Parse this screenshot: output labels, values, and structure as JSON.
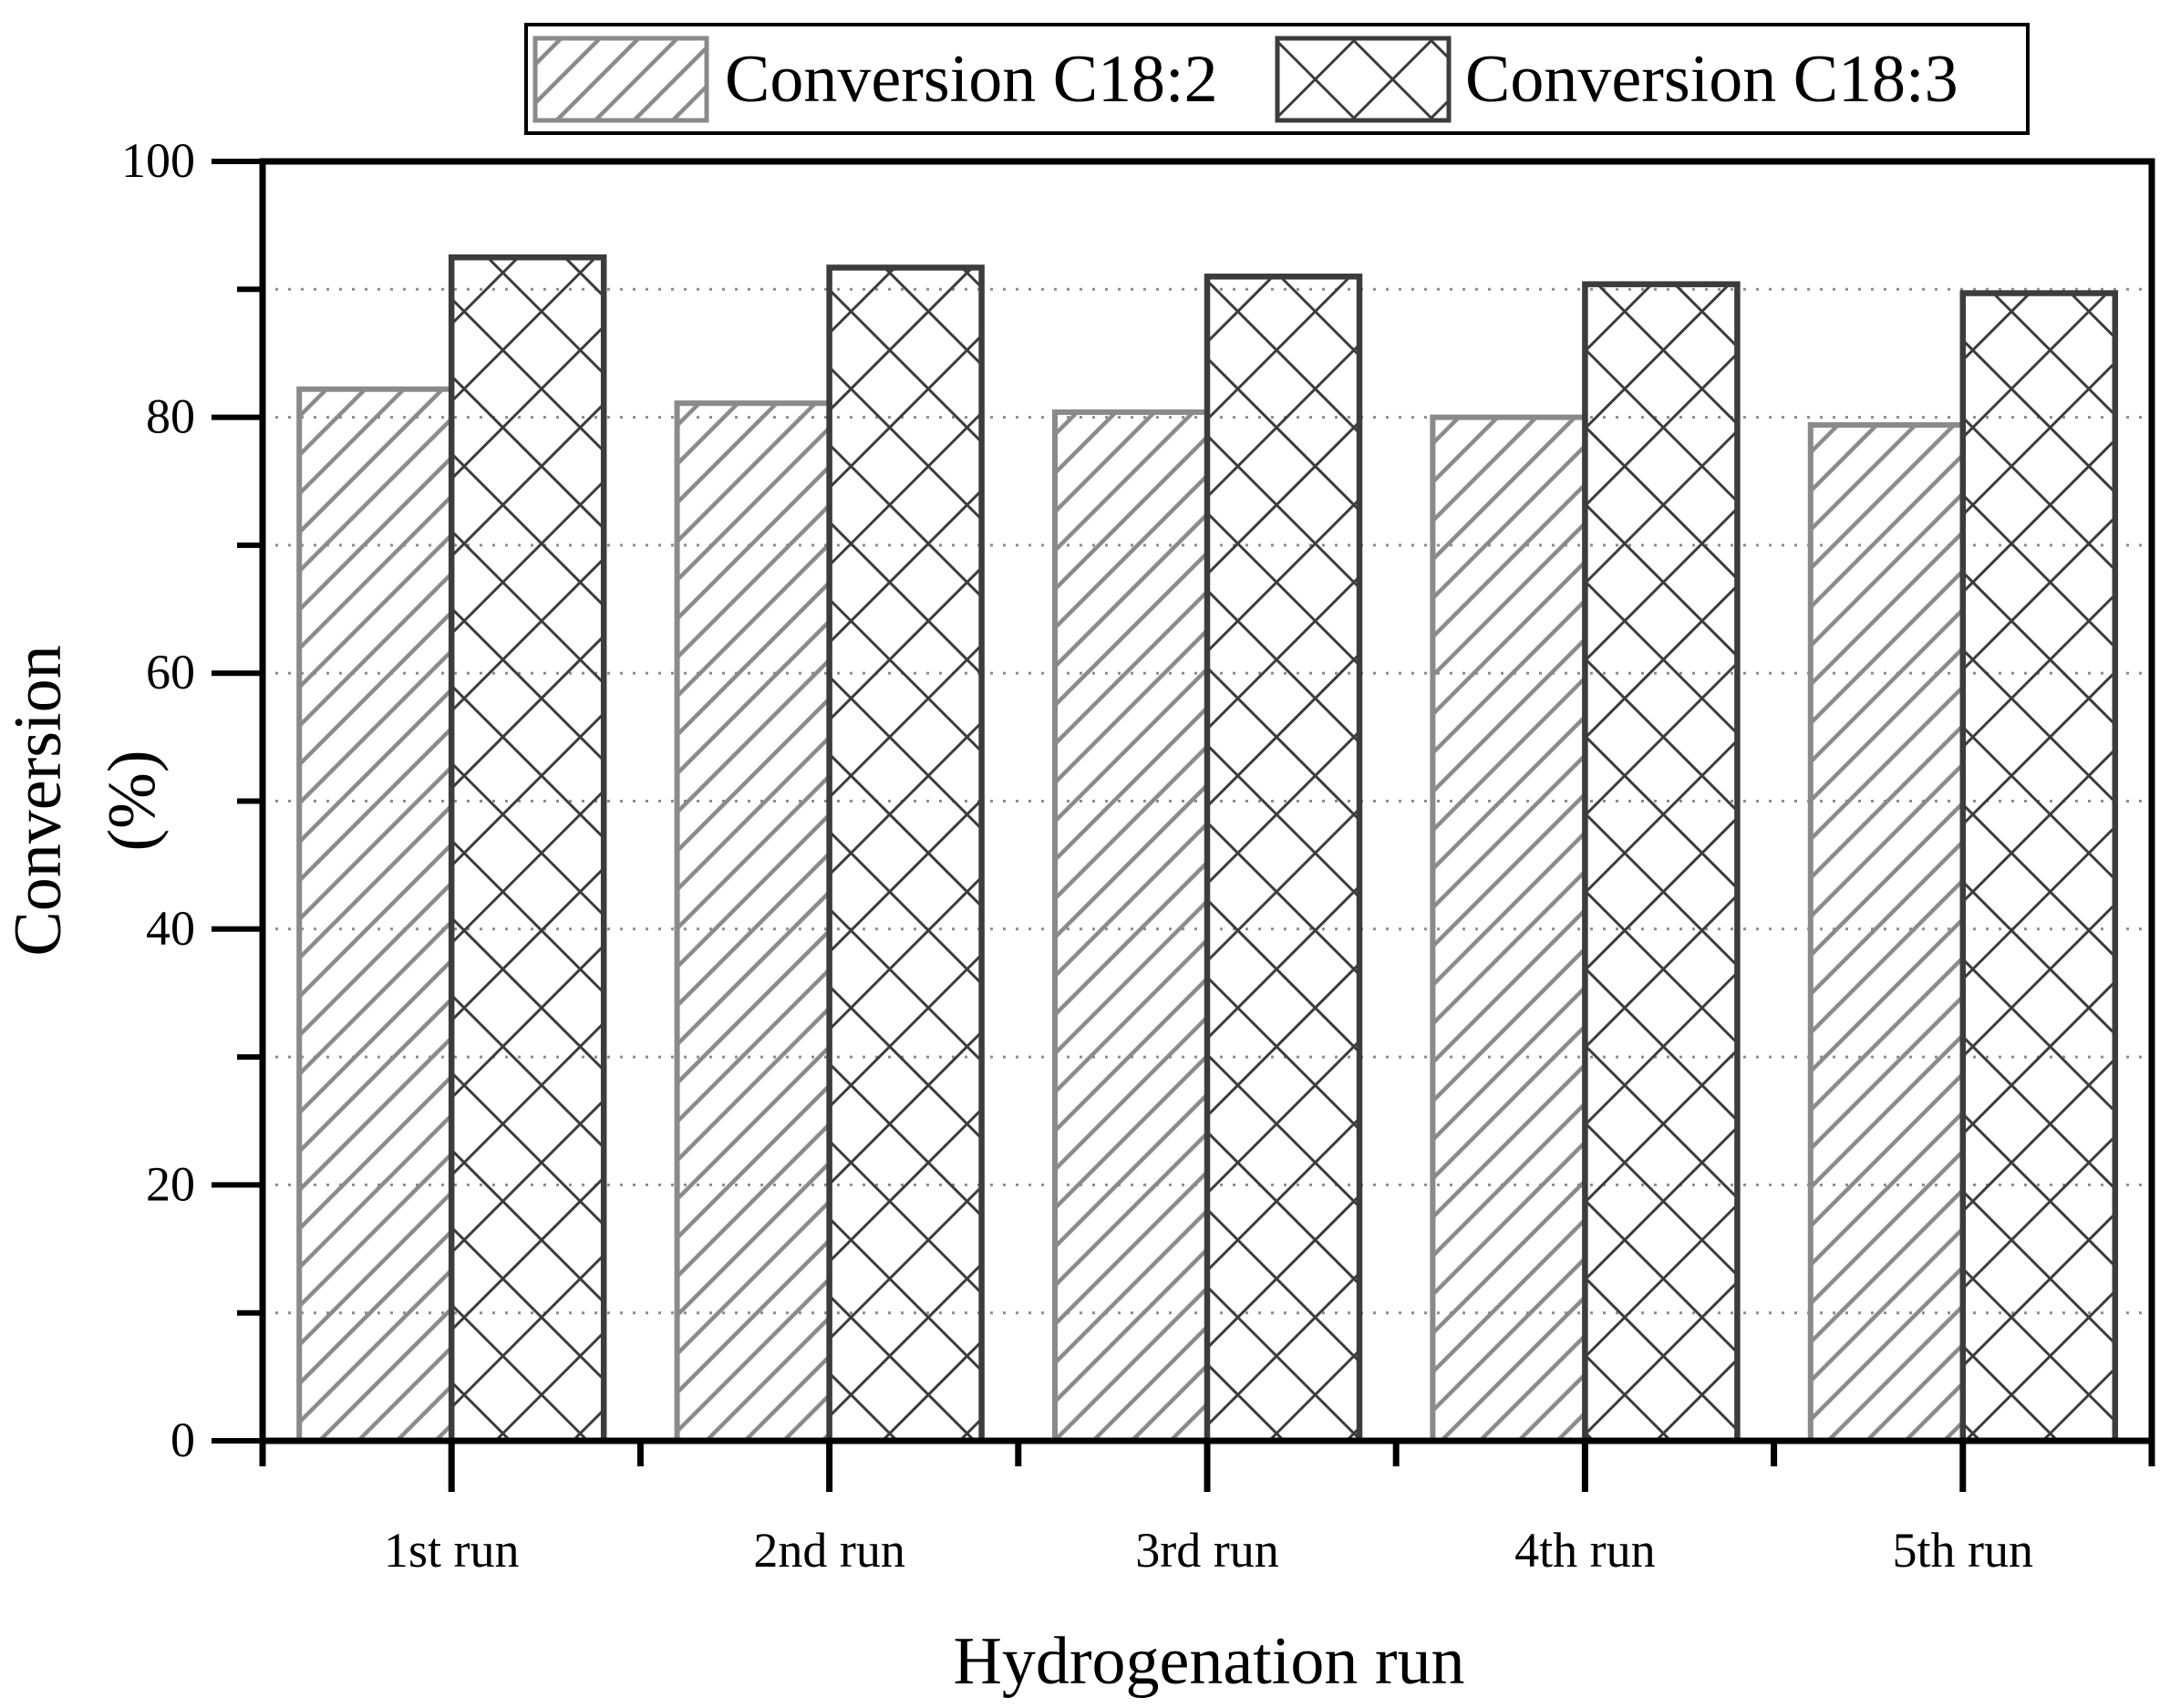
{
  "chart_data": {
    "type": "bar",
    "title": "",
    "categories": [
      "1st run",
      "2nd run",
      "3rd run",
      "4th run",
      "5th run"
    ],
    "series": [
      {
        "name": "Conversion C18:2",
        "values": [
          82.2,
          81.1,
          80.4,
          80.0,
          79.4
        ],
        "pattern": "diagonal-hatch",
        "color": "#8a8a8a"
      },
      {
        "name": "Conversion C18:3",
        "values": [
          92.5,
          91.7,
          91.0,
          90.4,
          89.7
        ],
        "pattern": "cross-hatch",
        "color": "#3c3c3c"
      }
    ],
    "xlabel": "Hydrogenation run",
    "ylabel": "Conversion (%)",
    "ylabel_lines": [
      "Conversion",
      "(%)"
    ],
    "ylim": [
      0,
      100
    ],
    "yticks": [
      0,
      20,
      40,
      60,
      80,
      100
    ],
    "grid": "dotted-horizontal",
    "legend_position": "top"
  }
}
